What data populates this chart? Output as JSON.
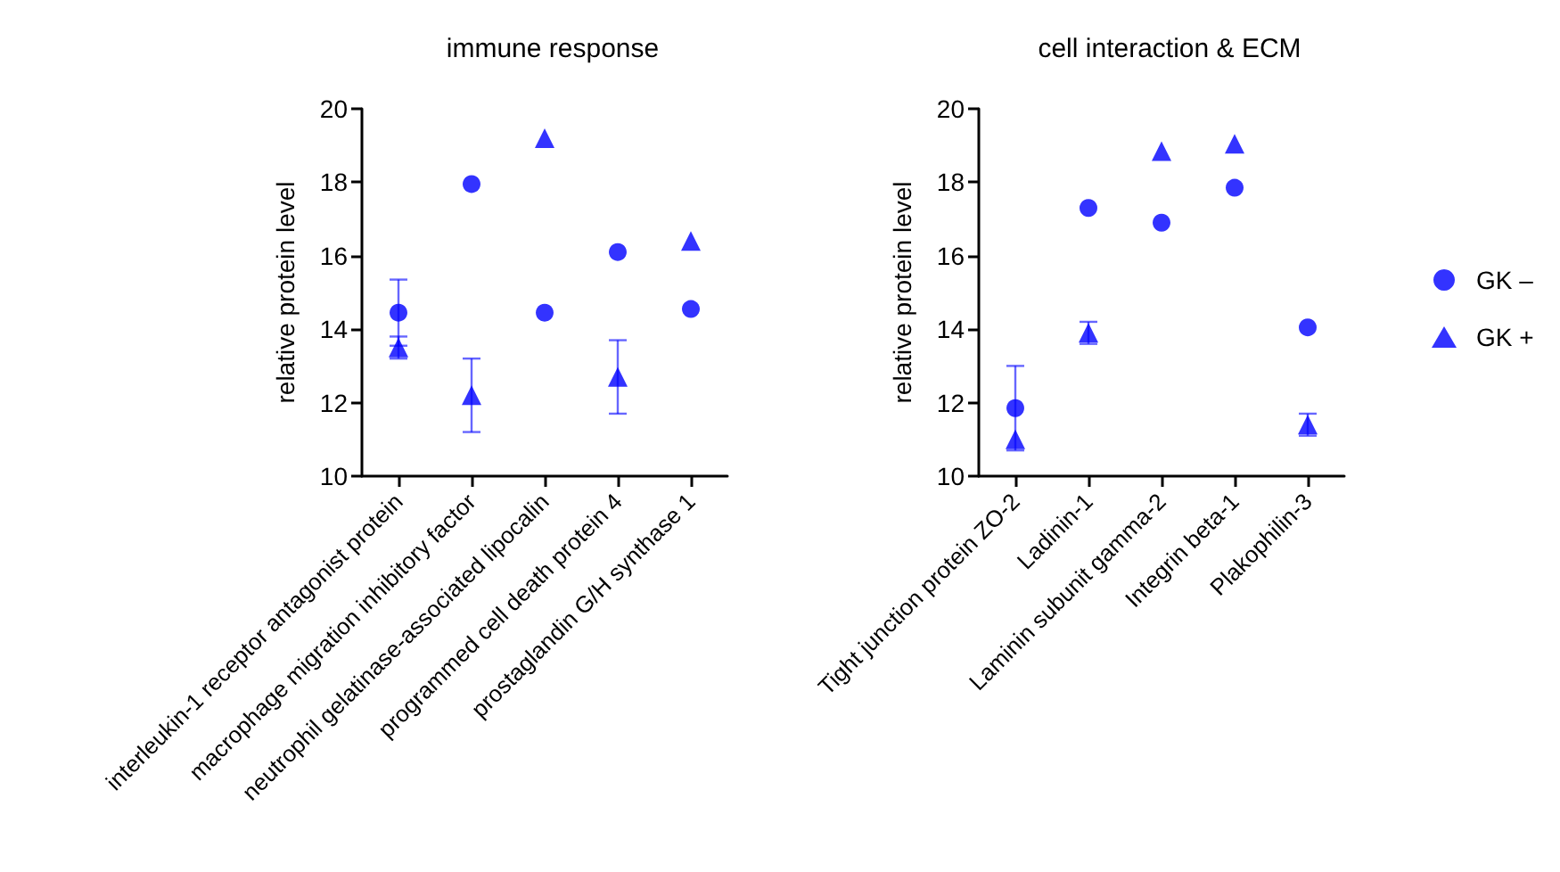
{
  "chart_data": [
    {
      "type": "scatter",
      "title": "immune response",
      "ylabel": "relative protein level",
      "categories": [
        "interleukin-1 receptor antagonist protein",
        "macrophage migration inhibitory factor",
        "neutrophil gelatinase-associated lipocalin",
        "programmed cell death protein 4",
        "prostaglandin G/H synthase 1"
      ],
      "ylim": [
        10,
        20
      ],
      "yticks": [
        10,
        12,
        14,
        16,
        18,
        20
      ],
      "grid": false,
      "legend": false,
      "series": [
        {
          "color": "#0000ff",
          "marker": "circle",
          "values": [
            14.45,
            17.95,
            14.45,
            16.1,
            14.55
          ],
          "errors": [
            0.9,
            null,
            null,
            null,
            null
          ]
        },
        {
          "color": "#0000ff",
          "marker": "triangle",
          "values": [
            13.5,
            12.2,
            19.2,
            12.7,
            16.4
          ],
          "errors": [
            0.3,
            1.0,
            null,
            1.0,
            null
          ]
        }
      ]
    },
    {
      "type": "scatter",
      "title": "cell interaction & ECM",
      "ylabel": "relative protein level",
      "categories": [
        "Tight junction protein ZO-2",
        "Ladinin-1",
        "Laminin subunit gamma-2",
        "Integrin beta-1",
        "Plakophilin-3"
      ],
      "ylim": [
        10,
        20
      ],
      "yticks": [
        10,
        12,
        14,
        16,
        18,
        20
      ],
      "grid": false,
      "legend": "right",
      "series": [
        {
          "name": "GK –",
          "color": "#0000ff",
          "marker": "circle",
          "values": [
            11.85,
            17.3,
            16.9,
            17.85,
            14.05
          ],
          "errors": [
            1.15,
            null,
            null,
            null,
            null
          ]
        },
        {
          "name": "GK +",
          "color": "#0000ff",
          "marker": "triangle",
          "values": [
            11.0,
            13.9,
            18.85,
            19.05,
            11.4
          ],
          "errors": [
            null,
            0.3,
            null,
            null,
            0.3
          ]
        }
      ]
    }
  ]
}
